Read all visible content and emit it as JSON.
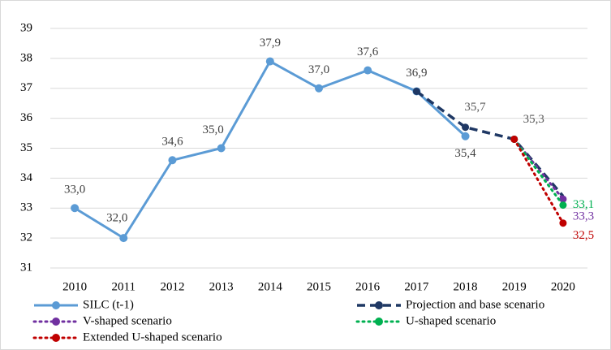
{
  "chart_data": {
    "type": "line",
    "categories": [
      "2010",
      "2011",
      "2012",
      "2013",
      "2014",
      "2015",
      "2016",
      "2017",
      "2018",
      "2019",
      "2020"
    ],
    "ylim": [
      31,
      39
    ],
    "yticks": [
      31,
      32,
      33,
      34,
      35,
      36,
      37,
      38,
      39
    ],
    "grid": true,
    "series": [
      {
        "name": "SILC (t-1)",
        "color": "#5b9bd5",
        "style": "solid",
        "values": [
          33.0,
          32.0,
          34.6,
          35.0,
          37.9,
          37.0,
          37.6,
          36.9,
          35.4,
          null,
          null
        ],
        "value_labels": [
          "33,0",
          "32,0",
          "34,6",
          "35,0",
          "37,9",
          "37,0",
          "37,6",
          "36,9",
          "35,4",
          null,
          null
        ]
      },
      {
        "name": "Projection and base scenario",
        "color": "#1f3864",
        "style": "dashed",
        "values": [
          null,
          null,
          null,
          null,
          null,
          null,
          null,
          36.9,
          35.7,
          35.3,
          33.4
        ],
        "value_labels": [
          null,
          null,
          null,
          null,
          null,
          null,
          null,
          null,
          "35,7",
          "35,3",
          null
        ]
      },
      {
        "name": "V-shaped scenario",
        "color": "#7030a0",
        "style": "dotted",
        "values": [
          null,
          null,
          null,
          null,
          null,
          null,
          null,
          null,
          null,
          35.3,
          33.3
        ],
        "value_labels": [
          null,
          null,
          null,
          null,
          null,
          null,
          null,
          null,
          null,
          null,
          "33,3"
        ]
      },
      {
        "name": "U-shaped scenario",
        "color": "#00b050",
        "style": "dotted",
        "values": [
          null,
          null,
          null,
          null,
          null,
          null,
          null,
          null,
          null,
          35.3,
          33.1
        ],
        "value_labels": [
          null,
          null,
          null,
          null,
          null,
          null,
          null,
          null,
          null,
          null,
          "33,1"
        ]
      },
      {
        "name": "Extended U-shaped scenario",
        "color": "#c00000",
        "style": "dotted",
        "values": [
          null,
          null,
          null,
          null,
          null,
          null,
          null,
          null,
          null,
          35.3,
          32.5
        ],
        "value_labels": [
          null,
          null,
          null,
          null,
          null,
          null,
          null,
          null,
          null,
          null,
          "32,5"
        ]
      }
    ]
  }
}
